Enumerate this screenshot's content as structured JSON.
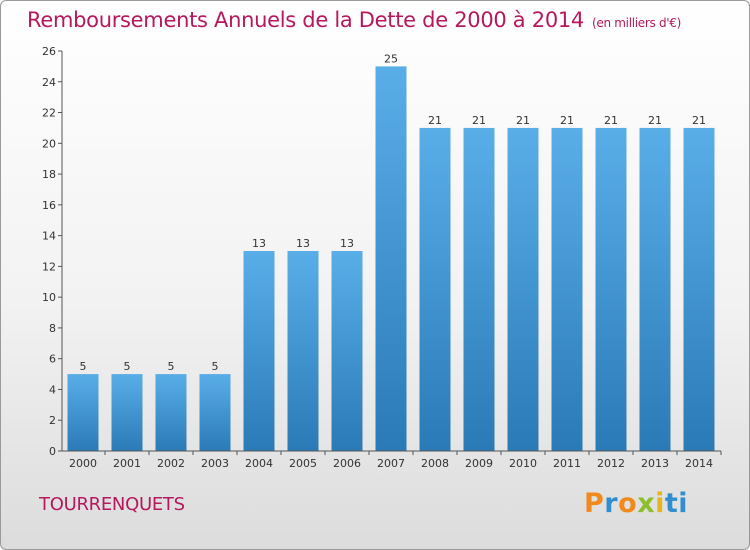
{
  "header": {
    "title": "Remboursements Annuels de la Dette de 2000 à 2014",
    "unit": "(en milliers d'€)"
  },
  "footer": {
    "commune": "TOURRENQUETS",
    "logo_letters": [
      "P",
      "r",
      "o",
      "x",
      "i",
      "ti"
    ]
  },
  "colors": {
    "title": "#b5185d",
    "bar_top": "#5aaee8",
    "bar_bottom": "#2a7ab8",
    "axis": "#555555"
  },
  "chart_data": {
    "type": "bar",
    "title": "Remboursements Annuels de la Dette de 2000 à 2014",
    "xlabel": "",
    "ylabel": "",
    "categories": [
      "2000",
      "2001",
      "2002",
      "2003",
      "2004",
      "2005",
      "2006",
      "2007",
      "2008",
      "2009",
      "2010",
      "2011",
      "2012",
      "2013",
      "2014"
    ],
    "values": [
      5,
      5,
      5,
      5,
      13,
      13,
      13,
      25,
      21,
      21,
      21,
      21,
      21,
      21,
      21
    ],
    "ylim": [
      0,
      26
    ],
    "yticks": [
      0,
      2,
      4,
      6,
      8,
      10,
      12,
      14,
      16,
      18,
      20,
      22,
      24,
      26
    ],
    "grid": false,
    "legend": "none"
  }
}
